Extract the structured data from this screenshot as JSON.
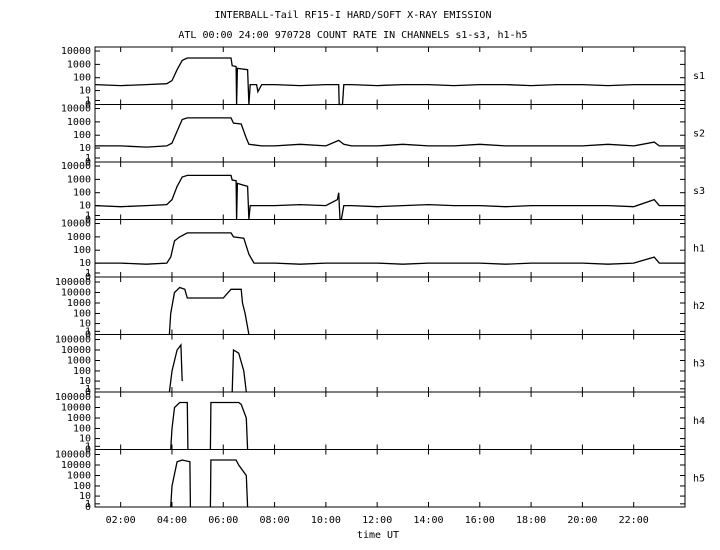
{
  "title": "INTERBALL-Tail RF15-I HARD/SOFT X-RAY EMISSION",
  "subtitle": "ATL 00:00 24:00 970728  COUNT RATE IN CHANNELS s1-s3, h1-h5",
  "x_label": "time UT",
  "xlim": [
    1,
    24
  ],
  "xticks": [
    {
      "value": 2,
      "label": "02:00"
    },
    {
      "value": 4,
      "label": "04:00"
    },
    {
      "value": 6,
      "label": "06:00"
    },
    {
      "value": 8,
      "label": "08:00"
    },
    {
      "value": 10,
      "label": "10:00"
    },
    {
      "value": 12,
      "label": "12:00"
    },
    {
      "value": 14,
      "label": "14:00"
    },
    {
      "value": 16,
      "label": "16:00"
    },
    {
      "value": 18,
      "label": "18:00"
    },
    {
      "value": 20,
      "label": "20:00"
    },
    {
      "value": 22,
      "label": "22:00"
    }
  ],
  "chart_data": [
    {
      "type": "line",
      "name": "s1",
      "yscale": "log1p",
      "color": "#000000",
      "ylim": [
        0,
        20000
      ],
      "yticks": [
        0,
        1,
        10,
        100,
        1000,
        10000
      ],
      "x": [
        1,
        2,
        3,
        3.8,
        4.0,
        4.2,
        4.4,
        4.6,
        5.5,
        6.3,
        6.35,
        6.5,
        6.52,
        6.55,
        6.95,
        7.0,
        7.05,
        7.3,
        7.35,
        7.5,
        8,
        9,
        10,
        10.5,
        10.52,
        10.65,
        10.7,
        11,
        12,
        13,
        14,
        15,
        16,
        17,
        18,
        19,
        20,
        21,
        22,
        24
      ],
      "values": [
        30,
        25,
        30,
        35,
        60,
        400,
        2000,
        3000,
        3000,
        3000,
        800,
        700,
        0,
        500,
        400,
        0,
        30,
        30,
        8,
        30,
        30,
        25,
        30,
        30,
        0,
        0,
        30,
        30,
        25,
        30,
        30,
        25,
        30,
        30,
        25,
        30,
        30,
        25,
        30,
        30
      ]
    },
    {
      "type": "line",
      "name": "s2",
      "yscale": "log1p",
      "color": "#000000",
      "ylim": [
        0,
        20000
      ],
      "yticks": [
        0,
        1,
        10,
        100,
        1000,
        10000
      ],
      "x": [
        1,
        2,
        3,
        3.8,
        4.0,
        4.2,
        4.4,
        4.6,
        5.5,
        6.3,
        6.4,
        6.7,
        6.9,
        7.0,
        7.5,
        8,
        9,
        10,
        10.5,
        10.7,
        11,
        12,
        13,
        14,
        15,
        16,
        17,
        18,
        19,
        20,
        21,
        22,
        22.8,
        23,
        24
      ],
      "values": [
        15,
        15,
        12,
        15,
        25,
        200,
        1500,
        2000,
        2000,
        2000,
        800,
        700,
        60,
        20,
        15,
        15,
        20,
        15,
        40,
        20,
        15,
        15,
        20,
        15,
        15,
        20,
        15,
        15,
        15,
        15,
        20,
        15,
        30,
        15,
        15
      ]
    },
    {
      "type": "line",
      "name": "s3",
      "yscale": "log1p",
      "color": "#000000",
      "ylim": [
        0,
        20000
      ],
      "yticks": [
        0,
        1,
        10,
        100,
        1000,
        10000
      ],
      "x": [
        1,
        2,
        3,
        3.8,
        4.0,
        4.2,
        4.4,
        4.6,
        5.5,
        6.3,
        6.35,
        6.5,
        6.52,
        6.55,
        6.95,
        7.0,
        7.05,
        8,
        9,
        10,
        10.45,
        10.5,
        10.55,
        10.6,
        10.7,
        11,
        12,
        13,
        14,
        15,
        16,
        17,
        18,
        19,
        20,
        21,
        22,
        22.8,
        23,
        24
      ],
      "values": [
        10,
        8,
        10,
        12,
        30,
        300,
        1500,
        2000,
        2000,
        2000,
        900,
        800,
        0,
        500,
        300,
        0,
        10,
        10,
        12,
        10,
        30,
        100,
        0,
        0,
        10,
        10,
        8,
        10,
        12,
        10,
        10,
        8,
        10,
        10,
        10,
        10,
        8,
        30,
        10,
        10
      ]
    },
    {
      "type": "line",
      "name": "h1",
      "yscale": "log1p",
      "color": "#000000",
      "ylim": [
        0,
        20000
      ],
      "yticks": [
        0,
        1,
        10,
        100,
        1000,
        10000
      ],
      "x": [
        1,
        2,
        3,
        3.8,
        3.95,
        4.1,
        4.3,
        4.6,
        5.5,
        6.3,
        6.4,
        6.8,
        7.0,
        7.2,
        8,
        9,
        10,
        11,
        12,
        13,
        14,
        15,
        16,
        17,
        18,
        19,
        20,
        21,
        22,
        22.8,
        23,
        24
      ],
      "values": [
        10,
        10,
        8,
        10,
        30,
        500,
        1000,
        2000,
        2000,
        2000,
        1000,
        800,
        50,
        10,
        10,
        8,
        10,
        10,
        10,
        8,
        10,
        10,
        10,
        8,
        10,
        10,
        10,
        8,
        10,
        30,
        10,
        10
      ]
    },
    {
      "type": "line",
      "name": "h2",
      "yscale": "log1p",
      "color": "#000000",
      "ylim": [
        0,
        300000
      ],
      "yticks": [
        0,
        1,
        10,
        100,
        1000,
        10000,
        100000
      ],
      "x": [
        3.9,
        3.95,
        4.1,
        4.3,
        4.5,
        4.6,
        5.0,
        5.5,
        6.0,
        6.3,
        6.5,
        6.7,
        6.75,
        6.85,
        7.0
      ],
      "values": [
        0,
        100,
        10000,
        30000,
        20000,
        3000,
        3000,
        3000,
        3000,
        20000,
        20000,
        20000,
        1000,
        100,
        0
      ]
    },
    {
      "type": "line",
      "name": "h3",
      "yscale": "log1p",
      "color": "#000000",
      "ylim": [
        0,
        300000
      ],
      "yticks": [
        0,
        1,
        10,
        100,
        1000,
        10000,
        100000
      ],
      "x": [
        3.9,
        4.0,
        4.2,
        4.35,
        4.4,
        5.0,
        6.35,
        6.4,
        6.6,
        6.8,
        6.9
      ],
      "values": [
        0,
        100,
        10000,
        30000,
        10,
        null,
        0,
        10000,
        5000,
        100,
        0
      ]
    },
    {
      "type": "line",
      "name": "h4",
      "yscale": "log1p",
      "color": "#000000",
      "ylim": [
        0,
        300000
      ],
      "yticks": [
        0,
        1,
        10,
        100,
        1000,
        10000,
        100000
      ],
      "x": [
        3.95,
        4.0,
        4.1,
        4.3,
        4.6,
        4.62,
        5.0,
        5.5,
        5.52,
        6.6,
        6.7,
        6.9,
        6.95
      ],
      "values": [
        0,
        100,
        10000,
        30000,
        30000,
        0,
        null,
        0,
        30000,
        30000,
        20000,
        1000,
        0
      ]
    },
    {
      "type": "line",
      "name": "h5",
      "yscale": "log1p",
      "color": "#000000",
      "ylim": [
        0,
        300000
      ],
      "yticks": [
        0,
        1,
        10,
        100,
        1000,
        10000,
        100000
      ],
      "x": [
        3.95,
        4.0,
        4.2,
        4.4,
        4.7,
        4.72,
        5.0,
        5.5,
        5.52,
        6.5,
        6.6,
        6.9,
        6.95
      ],
      "values": [
        0,
        100,
        20000,
        30000,
        20000,
        0,
        null,
        0,
        30000,
        30000,
        10000,
        1000,
        0
      ]
    }
  ]
}
